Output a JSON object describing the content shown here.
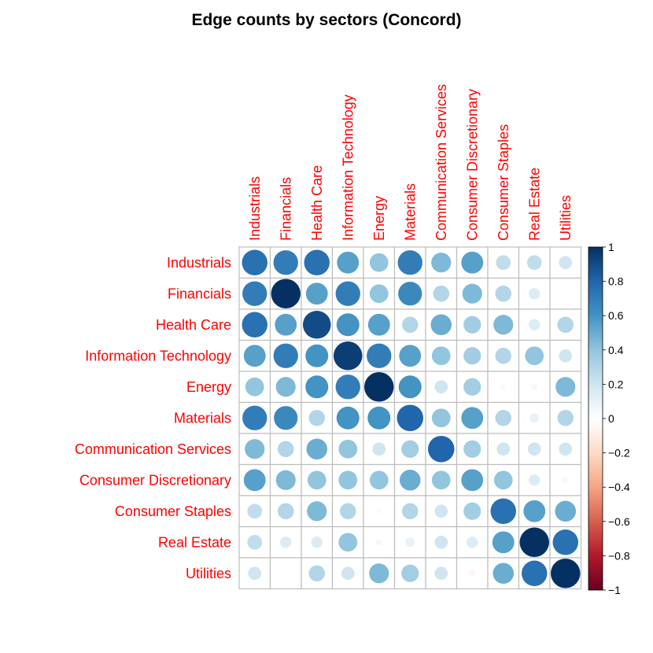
{
  "chart_data": {
    "type": "heatmap",
    "subtype": "correlation-circle-matrix",
    "title": "Edge counts by sectors (Concord)",
    "labels": [
      "Industrials",
      "Financials",
      "Health Care",
      "Information Technology",
      "Energy",
      "Materials",
      "Communication Services",
      "Consumer Discretionary",
      "Consumer Staples",
      "Real Estate",
      "Utilities"
    ],
    "matrix": [
      [
        0.75,
        0.7,
        0.75,
        0.55,
        0.4,
        0.7,
        0.45,
        0.55,
        0.25,
        0.25,
        0.2
      ],
      [
        0.7,
        1.0,
        0.55,
        0.7,
        0.4,
        0.65,
        0.3,
        0.45,
        0.3,
        0.15,
        0.0
      ],
      [
        0.75,
        0.55,
        0.9,
        0.6,
        0.55,
        0.3,
        0.5,
        0.35,
        0.45,
        0.15,
        0.3
      ],
      [
        0.55,
        0.7,
        0.6,
        0.95,
        0.7,
        0.55,
        0.4,
        0.35,
        0.3,
        0.4,
        0.2
      ],
      [
        0.4,
        0.45,
        0.6,
        0.7,
        1.0,
        0.6,
        0.2,
        0.35,
        0.03,
        0.05,
        0.45
      ],
      [
        0.7,
        0.65,
        0.3,
        0.6,
        0.6,
        0.8,
        0.4,
        0.55,
        0.3,
        0.1,
        0.3
      ],
      [
        0.45,
        0.3,
        0.5,
        0.4,
        0.2,
        0.35,
        0.8,
        0.35,
        0.2,
        0.2,
        0.2
      ],
      [
        0.55,
        0.45,
        0.4,
        0.4,
        0.4,
        0.5,
        0.4,
        0.55,
        0.4,
        0.15,
        -0.05
      ],
      [
        0.25,
        0.3,
        0.45,
        0.3,
        0.03,
        0.3,
        0.2,
        0.35,
        0.75,
        0.55,
        0.5
      ],
      [
        0.25,
        0.15,
        0.15,
        0.4,
        0.05,
        0.1,
        0.2,
        0.15,
        0.55,
        1.0,
        0.75
      ],
      [
        0.2,
        0.0,
        0.3,
        0.2,
        0.45,
        0.35,
        0.2,
        -0.05,
        0.5,
        0.75,
        1.0
      ]
    ],
    "legend": {
      "position": "right",
      "min": -1,
      "max": 1,
      "ticks": [
        1,
        0.8,
        0.6,
        0.4,
        0.2,
        0,
        -0.2,
        -0.4,
        -0.6,
        -0.8,
        -1
      ],
      "tick_labels": [
        "1",
        "0.8",
        "0.6",
        "0.4",
        "0.2",
        "0",
        "−0.2",
        "−0.4",
        "−0.6",
        "−0.8",
        "−1"
      ]
    },
    "colors": {
      "label": "#ff0000",
      "grid": "#bebebe",
      "title": "#000000",
      "palette": [
        "#67001f",
        "#b2182b",
        "#d6604d",
        "#f4a582",
        "#fddbc7",
        "#ffffff",
        "#d1e5f0",
        "#92c5de",
        "#4393c3",
        "#2166ac",
        "#053061"
      ]
    }
  }
}
